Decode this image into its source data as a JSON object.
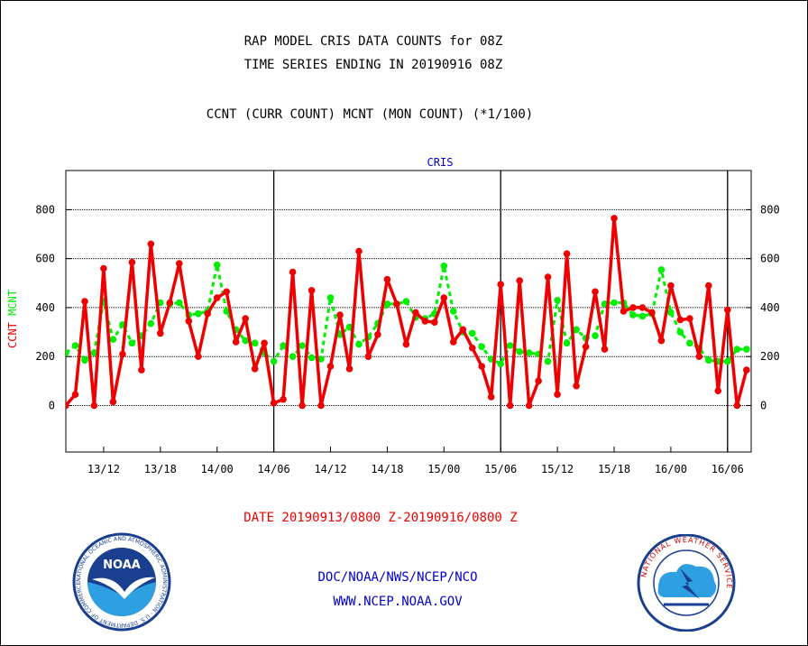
{
  "header": {
    "line1": "RAP MODEL CRIS DATA COUNTS for 08Z",
    "line2": "TIME SERIES ENDING IN 20190916 08Z",
    "line3": "CCNT (CURR COUNT) MCNT (MON COUNT) (*1/100)"
  },
  "footer": {
    "date_range": "DATE 20190913/0800 Z-20190916/0800 Z",
    "org": "DOC/NOAA/NWS/NCEP/NCO",
    "url": "WWW.NCEP.NOAA.GOV"
  },
  "logos": {
    "noaa_label": "NOAA",
    "noaa_ring_text": "NATIONAL OCEANIC AND ATMOSPHERIC ADMINISTRATION · U.S. DEPARTMENT OF COMMERCE",
    "nws_ring_text": "NATIONAL WEATHER SERVICE"
  },
  "colors": {
    "ccnt": "#ee0000",
    "mcnt": "#00ee00",
    "title_blue": "#0000cc",
    "axis": "#000000"
  },
  "chart_data": {
    "type": "line",
    "title": "CRIS",
    "ylabel_ccnt": "CCNT",
    "ylabel_mcnt": "MCNT",
    "ylim": [
      -190,
      960
    ],
    "yticks": [
      0,
      200,
      400,
      600,
      800
    ],
    "ytick_labels": [
      "0",
      "200",
      "400",
      "600",
      "800"
    ],
    "x_range": [
      8,
      80.5
    ],
    "xticks": [
      12,
      18,
      24,
      30,
      36,
      42,
      48,
      54,
      60,
      66,
      72,
      78
    ],
    "xtick_labels": [
      "13/12",
      "13/18",
      "14/00",
      "14/06",
      "14/12",
      "14/18",
      "15/00",
      "15/06",
      "15/12",
      "15/18",
      "16/00",
      "16/06"
    ],
    "day_separators": [
      30,
      54,
      78
    ],
    "grid": true,
    "series": [
      {
        "name": "CCNT",
        "color": "#ee0000",
        "style": "solid",
        "x": [
          8,
          9,
          10,
          11,
          12,
          13,
          14,
          15,
          16,
          17,
          18,
          19,
          20,
          21,
          22,
          23,
          24,
          25,
          26,
          27,
          28,
          29,
          30,
          31,
          32,
          33,
          34,
          35,
          36,
          37,
          38,
          39,
          40,
          41,
          42,
          43,
          44,
          45,
          46,
          47,
          48,
          49,
          50,
          51,
          52,
          53,
          54,
          55,
          56,
          57,
          58,
          59,
          60,
          61,
          62,
          63,
          64,
          65,
          66,
          67,
          68,
          69,
          70,
          71,
          72,
          73,
          74,
          75,
          76,
          77,
          78,
          79,
          80
        ],
        "values": [
          0,
          45,
          425,
          0,
          560,
          15,
          210,
          585,
          145,
          660,
          295,
          420,
          580,
          345,
          200,
          375,
          440,
          465,
          260,
          355,
          150,
          255,
          10,
          25,
          545,
          0,
          470,
          0,
          160,
          370,
          150,
          630,
          200,
          290,
          515,
          415,
          250,
          380,
          345,
          340,
          440,
          260,
          310,
          235,
          160,
          35,
          495,
          0,
          510,
          0,
          100,
          525,
          45,
          620,
          80,
          240,
          465,
          230,
          765,
          385,
          400,
          400,
          380,
          265,
          490,
          350,
          355,
          200,
          490,
          60,
          390,
          0,
          145
        ]
      },
      {
        "name": "MCNT",
        "color": "#00ee00",
        "style": "dashed",
        "x": [
          8,
          9,
          10,
          11,
          12,
          13,
          14,
          15,
          16,
          17,
          18,
          19,
          20,
          21,
          22,
          23,
          24,
          25,
          26,
          27,
          28,
          29,
          30,
          31,
          32,
          33,
          34,
          35,
          36,
          37,
          38,
          39,
          40,
          41,
          42,
          43,
          44,
          45,
          46,
          47,
          48,
          49,
          50,
          51,
          52,
          53,
          54,
          55,
          56,
          57,
          58,
          59,
          60,
          61,
          62,
          63,
          64,
          65,
          66,
          67,
          68,
          69,
          70,
          71,
          72,
          73,
          74,
          75,
          76,
          77,
          78,
          79,
          80
        ],
        "values": [
          215,
          245,
          185,
          215,
          425,
          270,
          330,
          255,
          285,
          335,
          420,
          415,
          420,
          370,
          375,
          385,
          575,
          385,
          310,
          265,
          255,
          215,
          180,
          245,
          200,
          245,
          195,
          190,
          440,
          290,
          320,
          250,
          280,
          335,
          415,
          415,
          425,
          360,
          355,
          375,
          570,
          385,
          300,
          295,
          240,
          190,
          170,
          245,
          220,
          215,
          210,
          180,
          430,
          255,
          310,
          275,
          285,
          415,
          420,
          420,
          370,
          365,
          375,
          555,
          380,
          300,
          255,
          235,
          185,
          180,
          180,
          230,
          230
        ]
      }
    ]
  }
}
